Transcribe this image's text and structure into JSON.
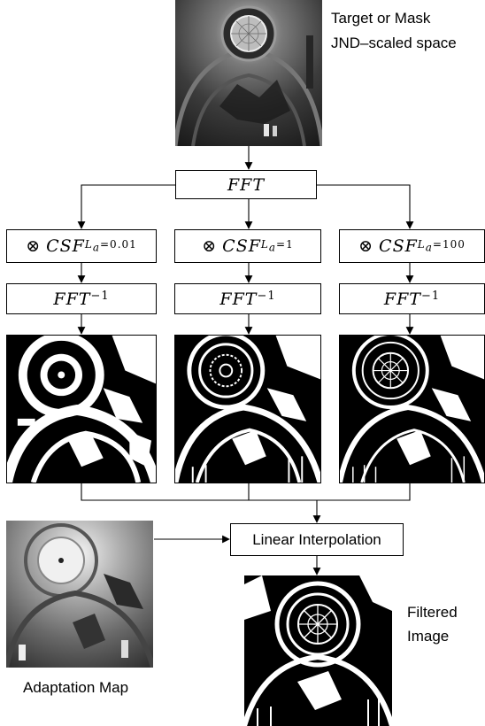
{
  "input_image": {
    "caption_line1": "Target or Mask",
    "caption_line2": "JND–scaled space"
  },
  "fft_node": {
    "label": "FFT"
  },
  "csf_nodes": [
    {
      "operator": "⊗",
      "name": "CSF",
      "sub_var": "L",
      "sub_var_sub": "a",
      "sub_eq": "=0.01"
    },
    {
      "operator": "⊗",
      "name": "CSF",
      "sub_var": "L",
      "sub_var_sub": "a",
      "sub_eq": "=1"
    },
    {
      "operator": "⊗",
      "name": "CSF",
      "sub_var": "L",
      "sub_var_sub": "a",
      "sub_eq": "=100"
    }
  ],
  "ifft_nodes": [
    {
      "name": "FFT",
      "exponent": "−1"
    },
    {
      "name": "FFT",
      "exponent": "−1"
    },
    {
      "name": "FFT",
      "exponent": "−1"
    }
  ],
  "interp_node": {
    "label": "Linear Interpolation"
  },
  "adaptation_map": {
    "caption": "Adaptation Map"
  },
  "output_image": {
    "caption_line1": "Filtered",
    "caption_line2": "Image"
  },
  "colors": {
    "line": "#000000",
    "background": "#ffffff"
  }
}
